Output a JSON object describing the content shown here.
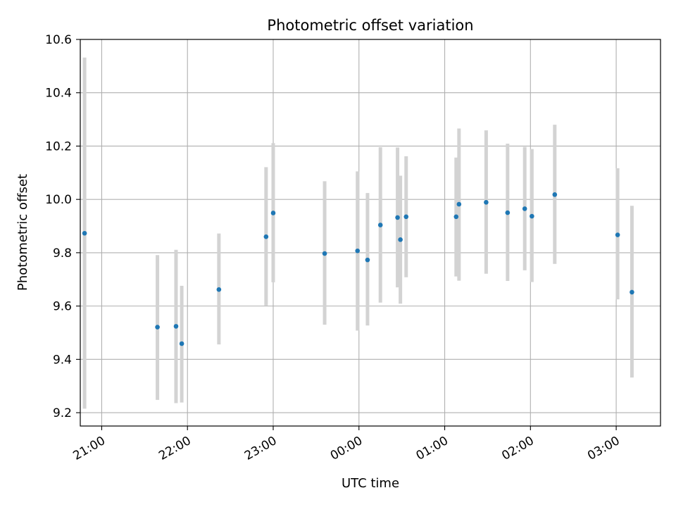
{
  "chart_data": {
    "type": "scatter",
    "title": "Photometric offset variation",
    "xlabel": "UTC time",
    "ylabel": "Photometric offset",
    "xlim": [
      "20:45",
      "03:31"
    ],
    "ylim": [
      9.15,
      10.6
    ],
    "x_ticks": [
      "21:00",
      "22:00",
      "23:00",
      "00:00",
      "01:00",
      "02:00",
      "03:00"
    ],
    "y_ticks": [
      "9.2",
      "9.4",
      "9.6",
      "9.8",
      "10.0",
      "10.2",
      "10.4",
      "10.6"
    ],
    "grid": true,
    "legend": "none",
    "colors": {
      "points": "#1f77b4",
      "errorbars": "#d3d3d3",
      "grid": "#b0b0b0"
    },
    "points": [
      {
        "x": "20:48",
        "y": 9.873,
        "err_low": 9.215,
        "err_high": 10.532
      },
      {
        "x": "21:39",
        "y": 9.521,
        "err_low": 9.248,
        "err_high": 9.791
      },
      {
        "x": "21:52",
        "y": 9.524,
        "err_low": 9.236,
        "err_high": 9.811
      },
      {
        "x": "21:56",
        "y": 9.459,
        "err_low": 9.238,
        "err_high": 9.676
      },
      {
        "x": "22:22",
        "y": 9.662,
        "err_low": 9.456,
        "err_high": 9.872
      },
      {
        "x": "22:55",
        "y": 9.86,
        "err_low": 9.602,
        "err_high": 10.121
      },
      {
        "x": "23:00",
        "y": 9.949,
        "err_low": 9.689,
        "err_high": 10.211
      },
      {
        "x": "23:36",
        "y": 9.797,
        "err_low": 9.53,
        "err_high": 10.068
      },
      {
        "x": "23:59",
        "y": 9.807,
        "err_low": 9.508,
        "err_high": 10.105
      },
      {
        "x": "00:06",
        "y": 9.773,
        "err_low": 9.527,
        "err_high": 10.024
      },
      {
        "x": "00:15",
        "y": 9.904,
        "err_low": 9.613,
        "err_high": 10.196
      },
      {
        "x": "00:27",
        "y": 9.932,
        "err_low": 9.67,
        "err_high": 10.195
      },
      {
        "x": "00:29",
        "y": 9.849,
        "err_low": 9.609,
        "err_high": 10.089
      },
      {
        "x": "00:33",
        "y": 9.935,
        "err_low": 9.708,
        "err_high": 10.162
      },
      {
        "x": "01:08",
        "y": 9.935,
        "err_low": 9.711,
        "err_high": 10.157
      },
      {
        "x": "01:10",
        "y": 9.982,
        "err_low": 9.695,
        "err_high": 10.266
      },
      {
        "x": "01:29",
        "y": 9.989,
        "err_low": 9.721,
        "err_high": 10.259
      },
      {
        "x": "01:44",
        "y": 9.95,
        "err_low": 9.694,
        "err_high": 10.209
      },
      {
        "x": "01:56",
        "y": 9.965,
        "err_low": 9.734,
        "err_high": 10.197
      },
      {
        "x": "02:01",
        "y": 9.937,
        "err_low": 9.69,
        "err_high": 10.189
      },
      {
        "x": "02:17",
        "y": 10.018,
        "err_low": 9.758,
        "err_high": 10.28
      },
      {
        "x": "03:01",
        "y": 9.867,
        "err_low": 9.625,
        "err_high": 10.117
      },
      {
        "x": "03:11",
        "y": 9.652,
        "err_low": 9.332,
        "err_high": 9.976
      }
    ]
  }
}
